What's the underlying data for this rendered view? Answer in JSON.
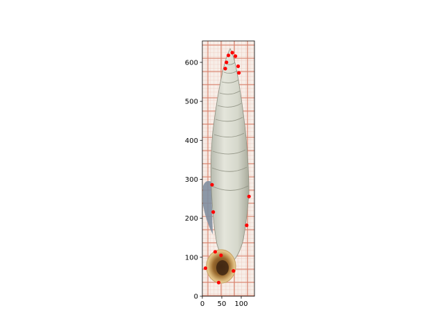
{
  "chart_data": {
    "type": "scatter",
    "title": "",
    "xlabel": "",
    "ylabel": "",
    "xlim": [
      0,
      134
    ],
    "ylim": [
      0,
      655
    ],
    "x_ticks": [
      0,
      50,
      100
    ],
    "y_ticks": [
      0,
      100,
      200,
      300,
      400,
      500,
      600
    ],
    "x_tick_labels": [
      "0",
      "50",
      "100"
    ],
    "y_tick_labels": [
      "0",
      "100",
      "200",
      "300",
      "400",
      "500",
      "600"
    ],
    "grid": false,
    "legend": "none",
    "background_image": "snail-shell-specimen-on-graph-paper",
    "series": [
      {
        "color": "#ff0000",
        "points": [
          {
            "x": 77,
            "y": 625
          },
          {
            "x": 67,
            "y": 618
          },
          {
            "x": 85,
            "y": 616
          },
          {
            "x": 62,
            "y": 600
          },
          {
            "x": 92,
            "y": 590
          },
          {
            "x": 59,
            "y": 584
          },
          {
            "x": 94,
            "y": 573
          },
          {
            "x": 25,
            "y": 286
          },
          {
            "x": 120,
            "y": 256
          },
          {
            "x": 28,
            "y": 216
          },
          {
            "x": 114,
            "y": 182
          },
          {
            "x": 33,
            "y": 114
          },
          {
            "x": 48,
            "y": 105
          },
          {
            "x": 8,
            "y": 72
          },
          {
            "x": 80,
            "y": 65
          },
          {
            "x": 42,
            "y": 35
          }
        ]
      }
    ]
  }
}
